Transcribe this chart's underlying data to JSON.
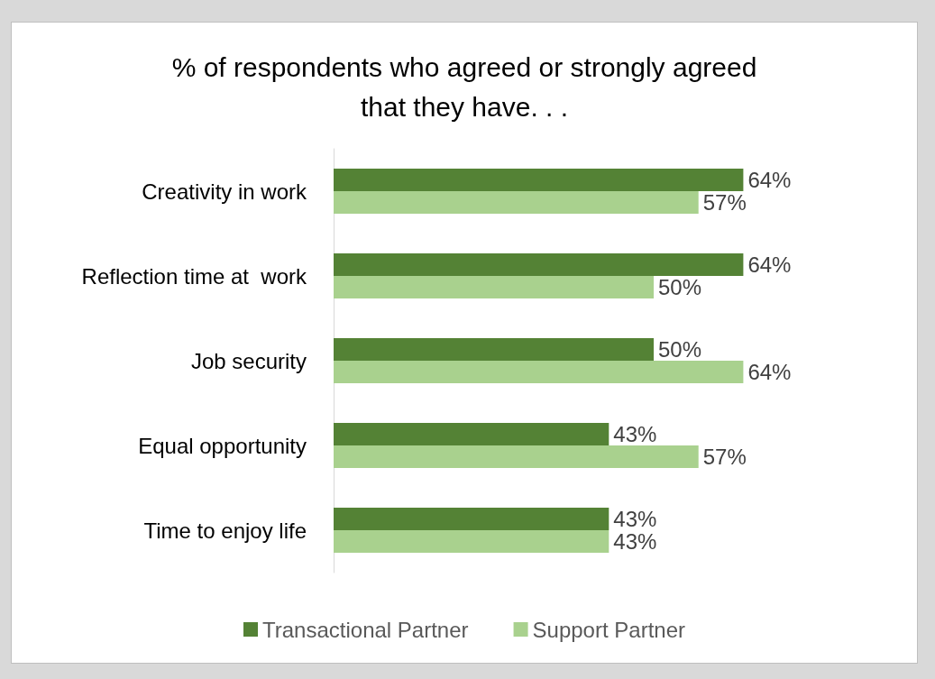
{
  "chart_data": {
    "type": "bar",
    "orientation": "horizontal",
    "title": "% of respondents who agreed or strongly agreed\nthat they have. . .",
    "categories": [
      "Creativity in work",
      "Reflection time at  work",
      "Job security",
      "Equal opportunity",
      "Time to enjoy life"
    ],
    "series": [
      {
        "name": "Transactional Partner",
        "color": "#548235",
        "values": [
          64,
          64,
          50,
          43,
          43
        ],
        "value_labels": [
          "64%",
          "64%",
          "50%",
          "43%",
          "43%"
        ]
      },
      {
        "name": "Support Partner",
        "color": "#a9d18e",
        "values": [
          57,
          50,
          64,
          57,
          43
        ],
        "value_labels": [
          "57%",
          "50%",
          "64%",
          "57%",
          "43%"
        ]
      }
    ],
    "legend": "bottom",
    "grid": false
  }
}
